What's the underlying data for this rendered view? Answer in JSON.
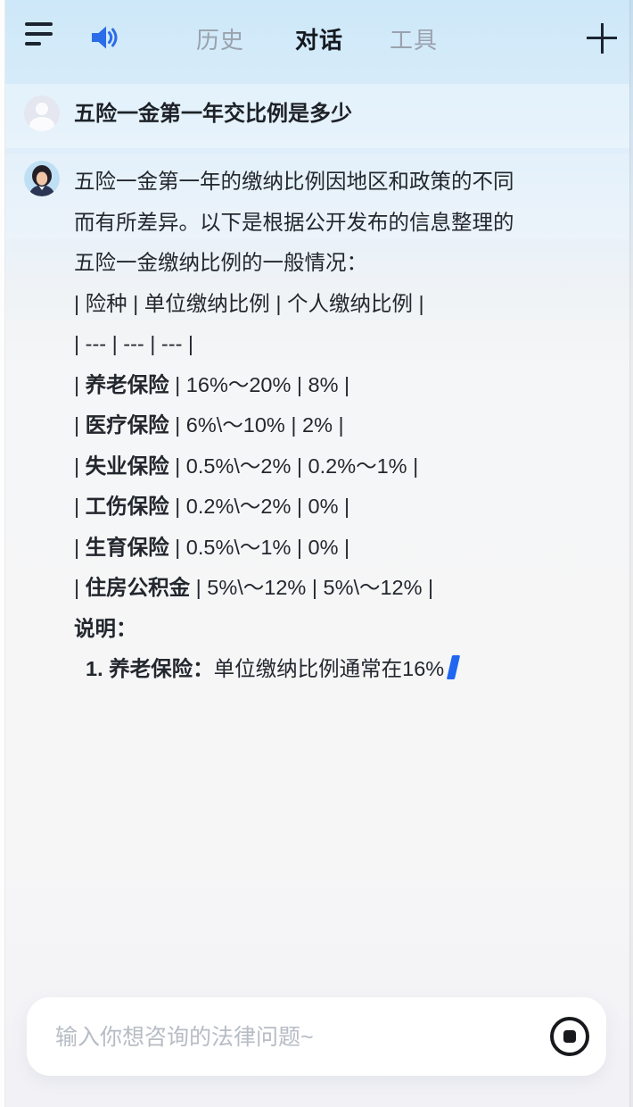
{
  "header": {
    "tabs": [
      {
        "label": "历史",
        "active": false
      },
      {
        "label": "对话",
        "active": true
      },
      {
        "label": "工具",
        "active": false
      }
    ],
    "icons": {
      "menu": "hamburger-menu",
      "audio": "speaker-sound-on",
      "new": "plus"
    }
  },
  "chat": {
    "user_message": {
      "text": "五险一金第一年交比例是多少",
      "avatar": "person-silhouette"
    },
    "assistant_message": {
      "avatar": "woman-portrait-photo",
      "lines": [
        {
          "segments": [
            {
              "t": "五险一金第一年的缴纳比例因地区和政策的不同"
            }
          ]
        },
        {
          "segments": [
            {
              "t": "而有所差异。以下是根据公开发布的信息整理的"
            }
          ]
        },
        {
          "segments": [
            {
              "t": "五险一金缴纳比例的一般情况："
            }
          ]
        },
        {
          "segments": [
            {
              "t": "| 险种 | 单位缴纳比例 | 个人缴纳比例 |"
            }
          ]
        },
        {
          "segments": [
            {
              "t": "| --- | --- | --- |"
            }
          ]
        },
        {
          "segments": [
            {
              "t": "| "
            },
            {
              "t": "养老保险",
              "b": true
            },
            {
              "t": " | 16%～20% | 8% |"
            }
          ]
        },
        {
          "segments": [
            {
              "t": "| "
            },
            {
              "t": "医疗保险",
              "b": true
            },
            {
              "t": " | 6%\\～10% | 2% |"
            }
          ]
        },
        {
          "segments": [
            {
              "t": "| "
            },
            {
              "t": "失业保险",
              "b": true
            },
            {
              "t": " | 0.5%\\～2% | 0.2%～1% |"
            }
          ]
        },
        {
          "segments": [
            {
              "t": "| "
            },
            {
              "t": "工伤保险",
              "b": true
            },
            {
              "t": " | 0.2%\\～2% | 0% |"
            }
          ]
        },
        {
          "segments": [
            {
              "t": "| "
            },
            {
              "t": "生育保险",
              "b": true
            },
            {
              "t": " | 0.5%\\～1% | 0% |"
            }
          ]
        },
        {
          "segments": [
            {
              "t": "| "
            },
            {
              "t": "住房公积金",
              "b": true
            },
            {
              "t": " | 5%\\～12% | 5%\\～12% |"
            }
          ]
        },
        {
          "segments": [
            {
              "t": "说明：",
              "b": true
            }
          ]
        },
        {
          "segments": [
            {
              "t": "1. 养老保险：",
              "b": true
            },
            {
              "t": "单位缴纳比例通常在16%"
            }
          ],
          "indent": true,
          "cursor": true
        }
      ],
      "streaming": true
    }
  },
  "composer": {
    "placeholder": "输入你想咨询的法律问题~",
    "value": "",
    "stop_icon": "stop-generation"
  },
  "colors": {
    "cursor_blue": "#2166f0",
    "speaker_blue": "#2b6ce8",
    "tab_active": "#14181f",
    "tab_inactive": "#9aa2ad",
    "text": "#23272e",
    "bg_top": "#cde8f9",
    "bg_bottom": "#f1f1f6"
  }
}
